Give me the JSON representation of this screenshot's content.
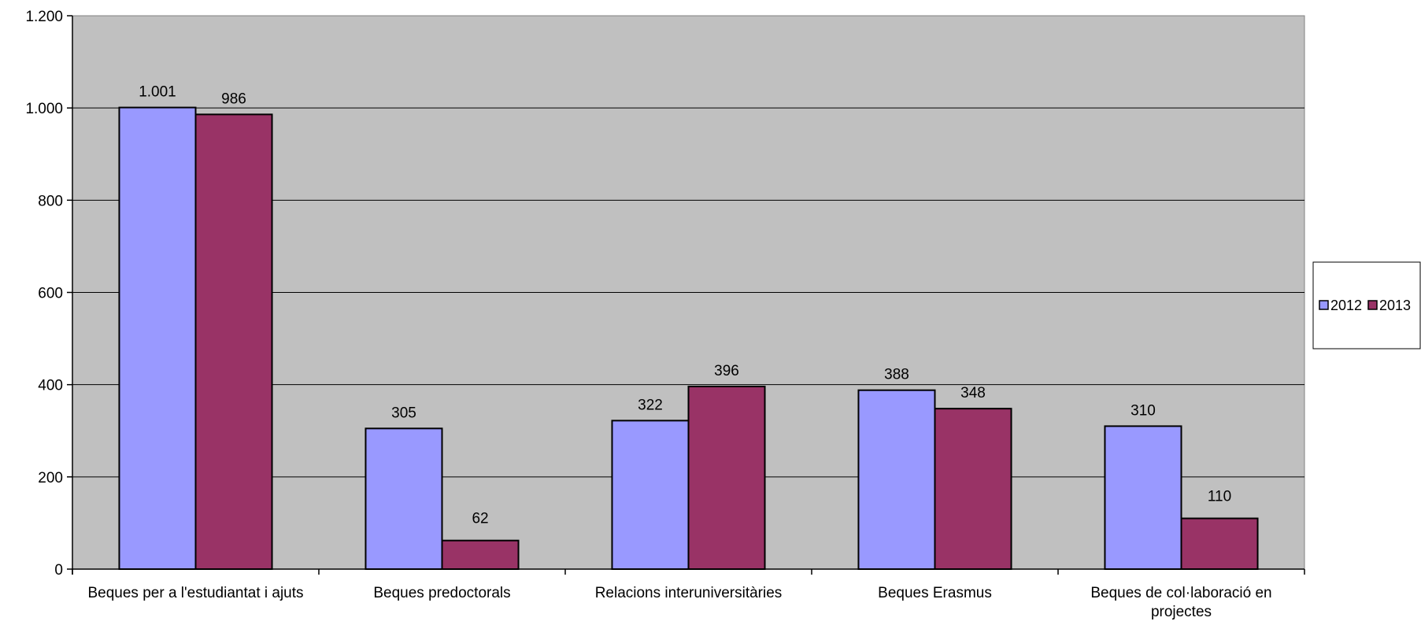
{
  "chart_data": {
    "type": "bar",
    "categories": [
      [
        "Beques per a l'estudiantat i ajuts"
      ],
      [
        "Beques predoctorals"
      ],
      [
        "Relacions interuniversitàries"
      ],
      [
        "Beques Erasmus"
      ],
      [
        "Beques de col·laboració en",
        "projectes"
      ]
    ],
    "series": [
      {
        "name": "2012",
        "color": "#9999ff",
        "values": [
          1001,
          305,
          322,
          388,
          310
        ],
        "labels": [
          "1.001",
          "305",
          "322",
          "388",
          "310"
        ]
      },
      {
        "name": "2013",
        "color": "#993366",
        "values": [
          986,
          62,
          396,
          348,
          110
        ],
        "labels": [
          "986",
          "62",
          "396",
          "348",
          "110"
        ]
      }
    ],
    "ylim": [
      0,
      1200
    ],
    "yticks": [
      0,
      200,
      400,
      600,
      800,
      1000,
      1200
    ],
    "ytick_labels": [
      "0",
      "200",
      "400",
      "600",
      "800",
      "1.000",
      "1.200"
    ],
    "grid": true,
    "plot_background": "#c0c0c0",
    "legend_position": "right"
  }
}
